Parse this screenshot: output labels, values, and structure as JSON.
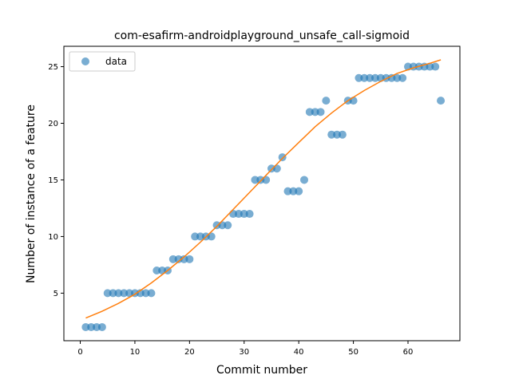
{
  "chart_data": {
    "type": "scatter",
    "title": "com-esafirm-androidplayground_unsafe_call-sigmoid",
    "xlabel": "Commit number",
    "ylabel": "Number of instance of a feature",
    "xlim": [
      -3,
      69.5
    ],
    "ylim": [
      0.8,
      26.8
    ],
    "xticks": [
      0,
      10,
      20,
      30,
      40,
      50,
      60
    ],
    "yticks": [
      5,
      10,
      15,
      20,
      25
    ],
    "grid": false,
    "legend_position": "upper-left",
    "colors": {
      "data": "#1f77b4",
      "fit": "#ff7f0e"
    },
    "series": [
      {
        "name": "data",
        "kind": "scatter",
        "x": [
          1,
          2,
          3,
          4,
          5,
          6,
          7,
          8,
          9,
          10,
          11,
          12,
          13,
          14,
          15,
          16,
          17,
          18,
          19,
          20,
          21,
          22,
          23,
          24,
          25,
          26,
          27,
          28,
          29,
          30,
          31,
          32,
          33,
          34,
          35,
          36,
          37,
          38,
          39,
          40,
          41,
          42,
          43,
          44,
          45,
          46,
          47,
          48,
          49,
          50,
          51,
          52,
          53,
          54,
          55,
          56,
          57,
          58,
          59,
          60,
          61,
          62,
          63,
          64,
          65,
          66
        ],
        "y": [
          2,
          2,
          2,
          2,
          5,
          5,
          5,
          5,
          5,
          5,
          5,
          5,
          5,
          7,
          7,
          7,
          8,
          8,
          8,
          8,
          10,
          10,
          10,
          10,
          11,
          11,
          11,
          12,
          12,
          12,
          12,
          15,
          15,
          15,
          16,
          16,
          17,
          14,
          14,
          14,
          15,
          21,
          21,
          21,
          22,
          19,
          19,
          19,
          22,
          22,
          24,
          24,
          24,
          24,
          24,
          24,
          24,
          24,
          24,
          25,
          25,
          25,
          25,
          25,
          25,
          22
        ]
      },
      {
        "kind": "line",
        "x": [
          1,
          4,
          7,
          10,
          13,
          16,
          19,
          22,
          25,
          28,
          31,
          34,
          37,
          40,
          43,
          46,
          49,
          52,
          55,
          58,
          61,
          64,
          66
        ],
        "y": [
          2.8,
          3.4,
          4.1,
          4.9,
          5.9,
          7.0,
          8.2,
          9.5,
          10.9,
          12.4,
          13.9,
          15.4,
          16.9,
          18.3,
          19.7,
          20.9,
          22.0,
          22.9,
          23.7,
          24.4,
          24.9,
          25.3,
          25.6
        ]
      }
    ]
  }
}
